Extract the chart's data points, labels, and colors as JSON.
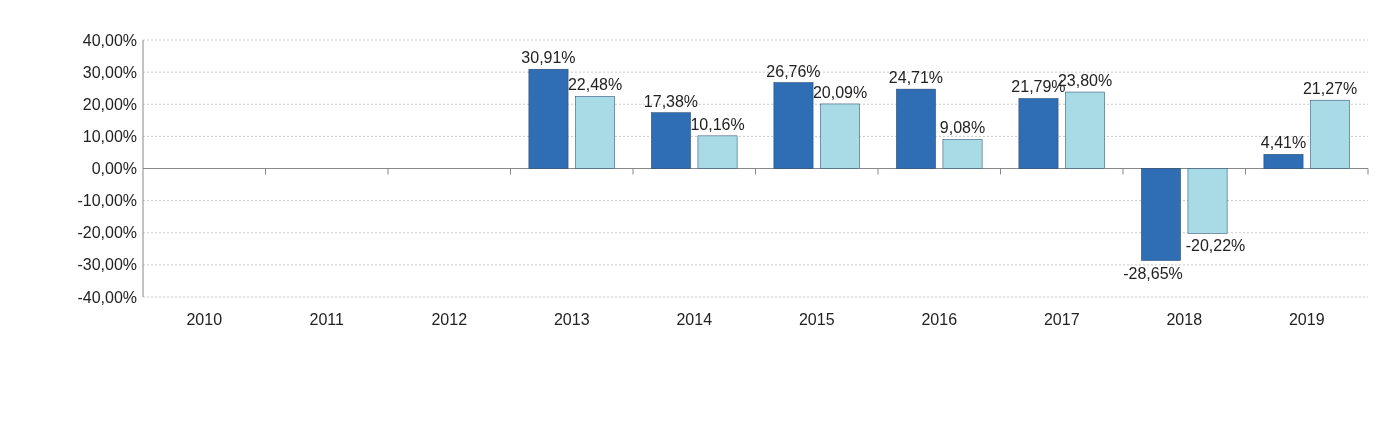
{
  "chart_data": {
    "type": "bar",
    "categories": [
      "2010",
      "2011",
      "2012",
      "2013",
      "2014",
      "2015",
      "2016",
      "2017",
      "2018",
      "2019"
    ],
    "series": [
      {
        "color": "#2f6db5",
        "values": [
          null,
          null,
          null,
          30.91,
          17.38,
          26.76,
          24.71,
          21.79,
          -28.65,
          4.41
        ],
        "value_labels": [
          null,
          null,
          null,
          "30,91%",
          "17,38%",
          "26,76%",
          "24,71%",
          "21,79%",
          "-28,65%",
          "4,41%"
        ]
      },
      {
        "color": "#a8dbe6",
        "values": [
          null,
          null,
          null,
          22.48,
          10.16,
          20.09,
          9.08,
          23.8,
          -20.22,
          21.27
        ],
        "value_labels": [
          null,
          null,
          null,
          "22,48%",
          "10,16%",
          "20,09%",
          "9,08%",
          "23,80%",
          "-20,22%",
          "21,27%"
        ]
      }
    ],
    "ylim": [
      -40,
      40
    ],
    "yticks": [
      {
        "value": -40,
        "label": "-40,00%"
      },
      {
        "value": -30,
        "label": "-30,00%"
      },
      {
        "value": -20,
        "label": "-20,00%"
      },
      {
        "value": -10,
        "label": "-10,00%"
      },
      {
        "value": 0,
        "label": "0,00%"
      },
      {
        "value": 10,
        "label": "10,00%"
      },
      {
        "value": 20,
        "label": "20,00%"
      },
      {
        "value": 30,
        "label": "30,00%"
      },
      {
        "value": 40,
        "label": "40,00%"
      }
    ],
    "grid": "y"
  }
}
